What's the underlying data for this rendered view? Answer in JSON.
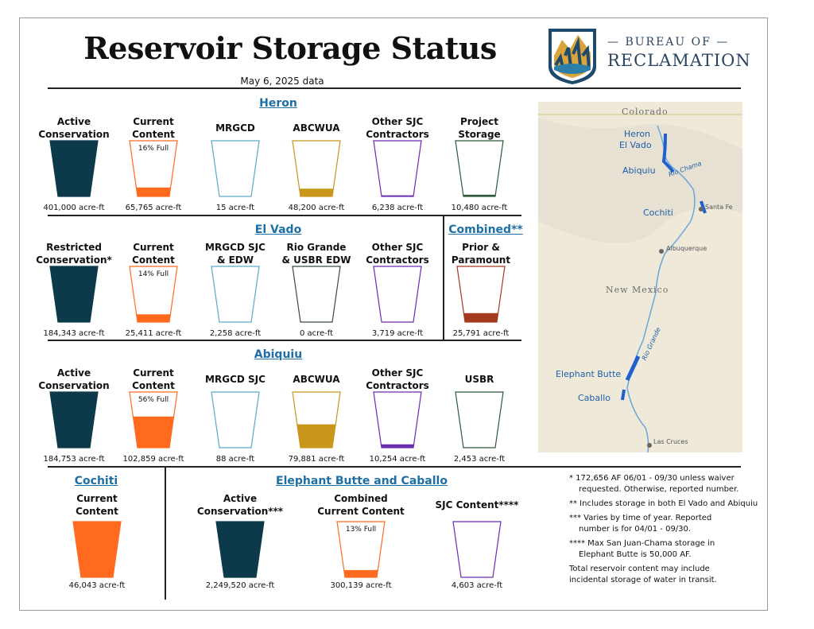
{
  "header": {
    "title": "Reservoir Storage Status",
    "date": "May 6, 2025 data",
    "logo": {
      "line1": "— BUREAU OF —",
      "line2": "RECLAMATION"
    }
  },
  "colors": {
    "teal": "#0d3a4a",
    "orange": "#ff6a1f",
    "lightblue": "#5aaac8",
    "gold": "#c8961a",
    "purple": "#6a2cb0",
    "green": "#2f5a3a",
    "darkgray": "#3a4a45",
    "darkred": "#a33a1f"
  },
  "heron": {
    "name": "Heron",
    "cols": [
      {
        "label1": "Active",
        "label2": "Conservation",
        "value": "401,000 acre-ft",
        "color": "teal",
        "fill": 1.0
      },
      {
        "label1": "Current",
        "label2": "Content",
        "value": "65,765 acre-ft",
        "color": "orange",
        "fill": 0.16,
        "pct": "16% Full"
      },
      {
        "label1": "MRGCD",
        "label2": "",
        "value": "15 acre-ft",
        "color": "lightblue",
        "fill": 0.0
      },
      {
        "label1": "ABCWUA",
        "label2": "",
        "value": "48,200 acre-ft",
        "color": "gold",
        "fill": 0.14
      },
      {
        "label1": "Other SJC",
        "label2": "Contractors",
        "value": "6,238 acre-ft",
        "color": "purple",
        "fill": 0.02
      },
      {
        "label1": "Project",
        "label2": "Storage",
        "value": "10,480 acre-ft",
        "color": "green",
        "fill": 0.03
      }
    ]
  },
  "elvado": {
    "name": "El Vado",
    "cols": [
      {
        "label1": "Restricted",
        "label2": "Conservation*",
        "value": "184,343 acre-ft",
        "color": "teal",
        "fill": 1.0
      },
      {
        "label1": "Current",
        "label2": "Content",
        "value": "25,411 acre-ft",
        "color": "orange",
        "fill": 0.14,
        "pct": "14% Full"
      },
      {
        "label1": "MRGCD SJC",
        "label2": "& EDW",
        "value": "2,258 acre-ft",
        "color": "lightblue",
        "fill": 0.0
      },
      {
        "label1": "Rio Grande",
        "label2": "& USBR EDW",
        "value": "0 acre-ft",
        "color": "darkgray",
        "fill": 0.0
      },
      {
        "label1": "Other SJC",
        "label2": "Contractors",
        "value": "3,719 acre-ft",
        "color": "purple",
        "fill": 0.0
      }
    ]
  },
  "combined": {
    "name": "Combined**",
    "cols": [
      {
        "label1": "Prior &",
        "label2": "Paramount",
        "value": "25,791 acre-ft",
        "color": "darkred",
        "fill": 0.16
      }
    ]
  },
  "abiquiu": {
    "name": "Abiquiu",
    "cols": [
      {
        "label1": "Active",
        "label2": "Conservation",
        "value": "184,753 acre-ft",
        "color": "teal",
        "fill": 1.0
      },
      {
        "label1": "Current",
        "label2": "Content",
        "value": "102,859 acre-ft",
        "color": "orange",
        "fill": 0.56,
        "pct": "56% Full"
      },
      {
        "label1": "MRGCD SJC",
        "label2": "",
        "value": "88 acre-ft",
        "color": "lightblue",
        "fill": 0.0
      },
      {
        "label1": "ABCWUA",
        "label2": "",
        "value": "79,881 acre-ft",
        "color": "gold",
        "fill": 0.42
      },
      {
        "label1": "Other SJC",
        "label2": "Contractors",
        "value": "10,254 acre-ft",
        "color": "purple",
        "fill": 0.06
      },
      {
        "label1": "USBR",
        "label2": "",
        "value": "2,453 acre-ft",
        "color": "green",
        "fill": 0.0
      }
    ]
  },
  "cochiti": {
    "name": "Cochiti",
    "cols": [
      {
        "label1": "Current",
        "label2": "Content",
        "value": "46,043 acre-ft",
        "color": "orange",
        "fill": 1.0
      }
    ]
  },
  "eb": {
    "name": "Elephant Butte and Caballo",
    "cols": [
      {
        "label1": "Active",
        "label2": "Conservation***",
        "value": "2,249,520 acre-ft",
        "color": "teal",
        "fill": 1.0
      },
      {
        "label1": "Combined",
        "label2": "Current Content",
        "value": "300,139 acre-ft",
        "color": "orange",
        "fill": 0.13,
        "pct": "13% Full"
      },
      {
        "label1": "SJC Content****",
        "label2": "",
        "value": "4,603 acre-ft",
        "color": "purple",
        "fill": 0.0
      }
    ]
  },
  "map": {
    "state1": "Colorado",
    "state2": "New Mexico",
    "labels": [
      "Heron",
      "El Vado",
      "Abiquiu",
      "Cochiti",
      "Elephant Butte",
      "Caballo"
    ],
    "cities": [
      "Santa Fe",
      "Albuquerque",
      "Las Cruces"
    ],
    "rivers": [
      "Rio Chama",
      "Rio Grande"
    ]
  },
  "notes": [
    {
      "a": "* 172,656 AF 06/01 - 09/30 unless waiver",
      "b": "requested. Otherwise, reported number."
    },
    {
      "a": "** Includes storage in both El Vado and Abiquiu",
      "b": ""
    },
    {
      "a": "*** Varies by time of year. Reported",
      "b": "number is for 04/01 - 09/30."
    },
    {
      "a": "**** Max San Juan-Chama storage in",
      "b": "Elephant Butte is 50,000 AF."
    },
    {
      "a": "Total reservoir content may include",
      "b": "incidental storage of water in transit."
    }
  ]
}
